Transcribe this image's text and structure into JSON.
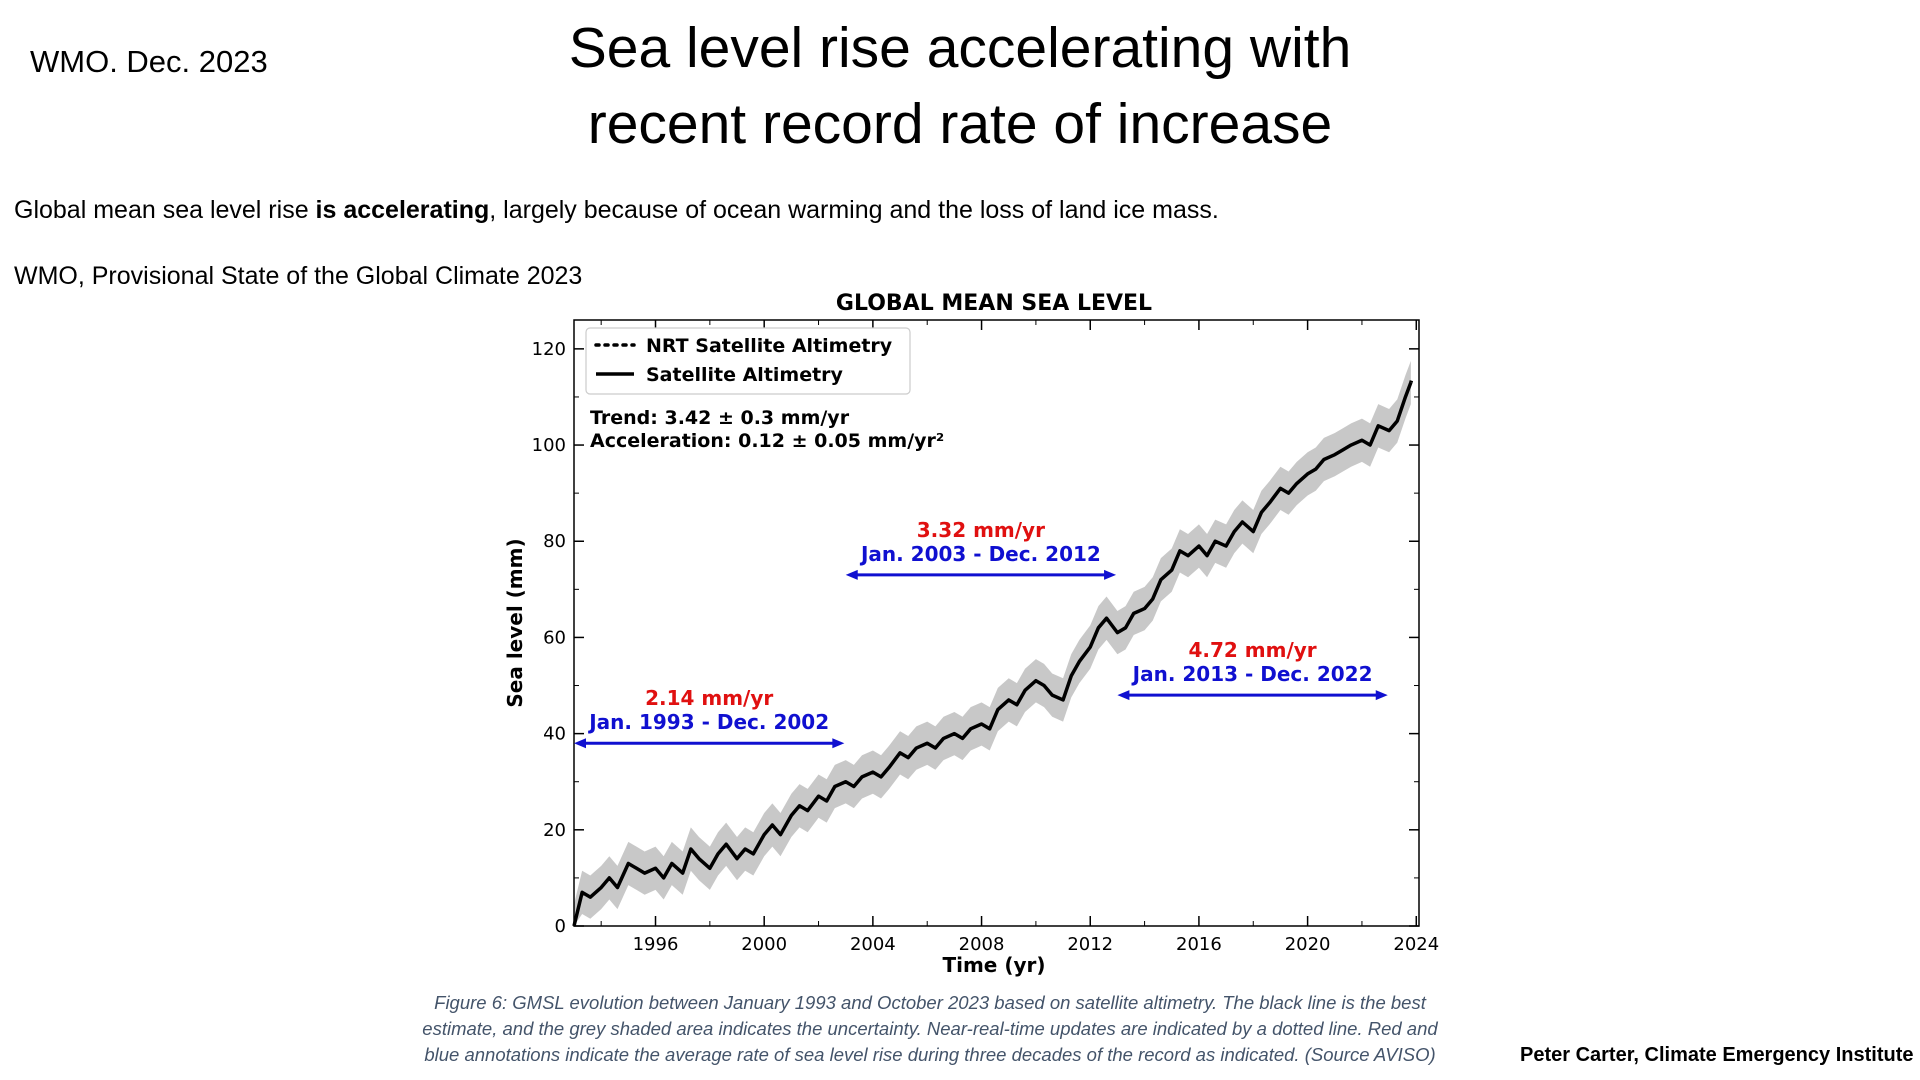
{
  "slide": {
    "source_tag": "WMO. Dec. 2023",
    "title_line1": "Sea level rise accelerating with",
    "title_line2": "recent record rate of increase",
    "subtitle_pre": "Global mean sea level rise ",
    "subtitle_bold": "is accelerating",
    "subtitle_post": ", largely because of ocean warming and the loss of land ice mass.",
    "source_line": "WMO, Provisional State of the Global Climate 2023",
    "caption_line1": "Figure 6: GMSL evolution between January 1993 and October 2023 based on satellite altimetry. The black line is the best",
    "caption_line2": "estimate, and the grey shaded area indicates the uncertainty. Near-real-time updates are indicated by a dotted line. Red and",
    "caption_line3": "blue annotations indicate the average rate of sea level rise during three decades of the record as indicated. (Source AVISO)",
    "credit": "Peter Carter, Climate Emergency Institute"
  },
  "chart_data": {
    "type": "line",
    "title": "GLOBAL MEAN SEA LEVEL",
    "xlabel": "Time (yr)",
    "ylabel": "Sea level (mm)",
    "xlim": [
      1993,
      2024.1
    ],
    "ylim": [
      0,
      126
    ],
    "x_ticks": [
      1996,
      2000,
      2004,
      2008,
      2012,
      2016,
      2020,
      2024
    ],
    "y_ticks": [
      0,
      20,
      40,
      60,
      80,
      100,
      120
    ],
    "legend": {
      "placement": "top-left",
      "entries": [
        {
          "label": "NRT Satellite Altimetry",
          "style": "dotted"
        },
        {
          "label": "Satellite Altimetry",
          "style": "solid"
        }
      ]
    },
    "stats": {
      "trend": "Trend: 3.42 ± 0.3 mm/yr",
      "acceleration": "Acceleration: 0.12 ± 0.05 mm/yr²"
    },
    "rate_annotations": [
      {
        "rate": "2.14 mm/yr",
        "period": "Jan. 1993 - Dec. 2002",
        "start": 1993.0,
        "end": 2002.95,
        "y": 38
      },
      {
        "rate": "3.32 mm/yr",
        "period": "Jan. 2003 - Dec. 2012",
        "start": 2003.0,
        "end": 2012.95,
        "y": 73
      },
      {
        "rate": "4.72 mm/yr",
        "period": "Jan. 2013 - Dec. 2022",
        "start": 2013.0,
        "end": 2022.95,
        "y": 48
      }
    ],
    "series": [
      {
        "name": "Satellite Altimetry",
        "uncertainty": 4.5,
        "x": [
          1993.0,
          1993.3,
          1993.6,
          1994.0,
          1994.3,
          1994.6,
          1995.0,
          1995.3,
          1995.6,
          1996.0,
          1996.3,
          1996.6,
          1997.0,
          1997.3,
          1997.6,
          1998.0,
          1998.3,
          1998.6,
          1999.0,
          1999.3,
          1999.6,
          2000.0,
          2000.3,
          2000.6,
          2001.0,
          2001.3,
          2001.6,
          2002.0,
          2002.3,
          2002.6,
          2003.0,
          2003.3,
          2003.6,
          2004.0,
          2004.3,
          2004.6,
          2005.0,
          2005.3,
          2005.6,
          2006.0,
          2006.3,
          2006.6,
          2007.0,
          2007.3,
          2007.6,
          2008.0,
          2008.3,
          2008.6,
          2009.0,
          2009.3,
          2009.6,
          2010.0,
          2010.3,
          2010.6,
          2011.0,
          2011.3,
          2011.6,
          2012.0,
          2012.3,
          2012.6,
          2013.0,
          2013.3,
          2013.6,
          2014.0,
          2014.3,
          2014.6,
          2015.0,
          2015.3,
          2015.6,
          2016.0,
          2016.3,
          2016.6,
          2017.0,
          2017.3,
          2017.6,
          2018.0,
          2018.3,
          2018.6,
          2019.0,
          2019.3,
          2019.6,
          2020.0,
          2020.3,
          2020.6,
          2021.0,
          2021.3,
          2021.6,
          2022.0,
          2022.3,
          2022.6,
          2023.0,
          2023.3,
          2023.6,
          2023.8
        ],
        "values": [
          0,
          7,
          6,
          8,
          10,
          8,
          13,
          12,
          11,
          12,
          10,
          13,
          11,
          16,
          14,
          12,
          15,
          17,
          14,
          16,
          15,
          19,
          21,
          19,
          23,
          25,
          24,
          27,
          26,
          29,
          30,
          29,
          31,
          32,
          31,
          33,
          36,
          35,
          37,
          38,
          37,
          39,
          40,
          39,
          41,
          42,
          41,
          45,
          47,
          46,
          49,
          51,
          50,
          48,
          47,
          52,
          55,
          58,
          62,
          64,
          61,
          62,
          65,
          66,
          68,
          72,
          74,
          78,
          77,
          79,
          77,
          80,
          79,
          82,
          84,
          82,
          86,
          88,
          91,
          90,
          92,
          94,
          95,
          97,
          98,
          99,
          100,
          101,
          100,
          104,
          103,
          105,
          110,
          113
        ]
      }
    ]
  }
}
